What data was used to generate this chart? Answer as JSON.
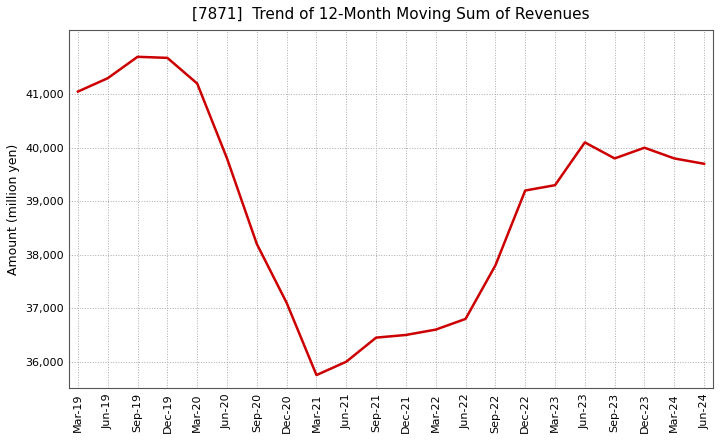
{
  "title": "[7871]  Trend of 12-Month Moving Sum of Revenues",
  "ylabel": "Amount (million yen)",
  "background_color": "#ffffff",
  "line_color": "#cc0000",
  "grid_color": "#aaaaaa",
  "x_labels": [
    "Mar-19",
    "Jun-19",
    "Sep-19",
    "Dec-19",
    "Mar-20",
    "Jun-20",
    "Sep-20",
    "Dec-20",
    "Mar-21",
    "Jun-21",
    "Sep-21",
    "Dec-21",
    "Mar-22",
    "Jun-22",
    "Sep-22",
    "Dec-22",
    "Mar-23",
    "Jun-23",
    "Sep-23",
    "Dec-23",
    "Mar-24",
    "Jun-24"
  ],
  "values": [
    41050,
    41300,
    41700,
    41680,
    41200,
    39800,
    38200,
    37100,
    35750,
    36000,
    36450,
    36500,
    36600,
    36800,
    37800,
    39200,
    39300,
    40100,
    39800,
    40000,
    39800,
    39700
  ],
  "ylim_min": 35500,
  "ylim_max": 42200,
  "yticks": [
    36000,
    37000,
    38000,
    39000,
    40000,
    41000
  ],
  "title_fontsize": 11,
  "label_fontsize": 9,
  "tick_fontsize": 8
}
